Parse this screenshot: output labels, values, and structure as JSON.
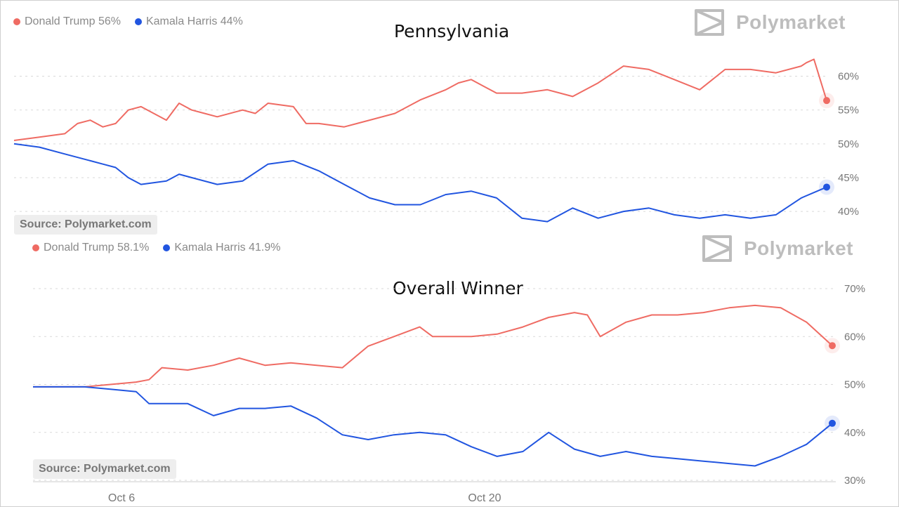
{
  "colors": {
    "trump": "#ef6b63",
    "harris": "#2155e0",
    "grid": "#d9d9d9"
  },
  "pennsylvania": {
    "title": "Pennsylvania",
    "legend": [
      "Donald Trump 56%",
      "Kamala Harris 44%"
    ],
    "brand": "Polymarket",
    "source": "Source: Polymarket.com"
  },
  "overall": {
    "title": "Overall Winner",
    "legend": [
      "Donald Trump 58.1%",
      "Kamala Harris 41.9%"
    ],
    "brand": "Polymarket",
    "source": "Source: Polymarket.com"
  },
  "x_axis": {
    "labels": [
      "Oct 6",
      "Oct 20"
    ]
  },
  "chart_data": [
    {
      "type": "line",
      "title": "Pennsylvania",
      "ylim": [
        37,
        64
      ],
      "yticks": [
        "60%",
        "55%",
        "50%",
        "45%",
        "40%"
      ],
      "ytick_values": [
        60,
        55,
        50,
        45,
        40
      ],
      "x_range_days": [
        0,
        32
      ],
      "series": [
        {
          "name": "Donald Trump",
          "color": "#ef6b63",
          "x": [
            0,
            1,
            2,
            2.5,
            3,
            3.5,
            4,
            4.5,
            5,
            6,
            6.5,
            7,
            7.5,
            8,
            9,
            9.5,
            10,
            11,
            11.5,
            12,
            13,
            14,
            15,
            16,
            17,
            17.5,
            18,
            18.5,
            19,
            20,
            21,
            22,
            23,
            24,
            25,
            26,
            27,
            28,
            29,
            30,
            31,
            31.2,
            31.5,
            32
          ],
          "y": [
            50.5,
            51,
            51.5,
            53,
            53.5,
            52.5,
            53,
            55,
            55.5,
            53.5,
            56,
            55,
            54.5,
            54,
            55,
            54.5,
            56,
            55.5,
            53,
            53,
            52.5,
            53.5,
            54.5,
            56.5,
            58,
            59,
            59.5,
            58.5,
            57.5,
            57.5,
            58,
            57,
            59,
            61.5,
            61,
            59.5,
            58,
            61,
            61,
            60.5,
            61.5,
            62,
            62.5,
            56.4
          ]
        },
        {
          "name": "Kamala Harris",
          "color": "#2155e0",
          "x": [
            0,
            1,
            2,
            3,
            3.5,
            4,
            4.5,
            5,
            6,
            6.5,
            7,
            8,
            9,
            10,
            11,
            12,
            13,
            13.5,
            14,
            15,
            16,
            17,
            18,
            19,
            20,
            21,
            22,
            23,
            24,
            25,
            26,
            27,
            28,
            29,
            30,
            31,
            32
          ],
          "y": [
            50,
            49.5,
            48.5,
            47.5,
            47,
            46.5,
            45,
            44,
            44.5,
            45.5,
            45,
            44,
            44.5,
            47,
            47.5,
            46,
            44,
            43,
            42,
            41,
            41,
            42.5,
            43,
            42,
            39,
            38.5,
            40.5,
            39,
            40,
            40.5,
            39.5,
            39,
            39.5,
            39,
            39.5,
            42,
            43.6
          ]
        }
      ]
    },
    {
      "type": "line",
      "title": "Overall Winner",
      "ylim": [
        30,
        70
      ],
      "yticks": [
        "70%",
        "60%",
        "50%",
        "40%",
        "30%"
      ],
      "ytick_values": [
        70,
        60,
        50,
        40,
        30
      ],
      "x_range_days": [
        0,
        31
      ],
      "series": [
        {
          "name": "Donald Trump",
          "color": "#ef6b63",
          "x": [
            0,
            1,
            2,
            3,
            4,
            4.5,
            5,
            6,
            7,
            8,
            9,
            10,
            11,
            12,
            13,
            14,
            15,
            15.5,
            16,
            17,
            18,
            19,
            20,
            21,
            21.5,
            22,
            23,
            24,
            25,
            26,
            27,
            28,
            29,
            30,
            31
          ],
          "y": [
            49.5,
            49.5,
            49.5,
            50,
            50.5,
            51,
            53.5,
            53,
            54,
            55.5,
            54,
            54.5,
            54,
            53.5,
            58,
            60,
            62,
            60,
            60,
            60,
            60.5,
            62,
            64,
            65,
            64.5,
            60,
            63,
            64.5,
            64.5,
            65,
            66,
            66.5,
            66,
            63,
            58.1
          ]
        },
        {
          "name": "Kamala Harris",
          "color": "#2155e0",
          "x": [
            0,
            1,
            2,
            3,
            4,
            4.5,
            5,
            6,
            7,
            8,
            9,
            10,
            11,
            12,
            13,
            14,
            15,
            16,
            17,
            18,
            19,
            20,
            21,
            22,
            23,
            24,
            25,
            26,
            27,
            28,
            29,
            30,
            31
          ],
          "y": [
            49.5,
            49.5,
            49.5,
            49,
            48.5,
            46,
            46,
            46,
            43.5,
            45,
            45,
            45.5,
            43,
            39.5,
            38.5,
            39.5,
            40,
            39.5,
            37,
            35,
            36,
            40,
            36.5,
            35,
            36,
            35,
            34.5,
            34,
            33.5,
            33,
            35,
            37.5,
            41.9
          ]
        }
      ]
    }
  ]
}
